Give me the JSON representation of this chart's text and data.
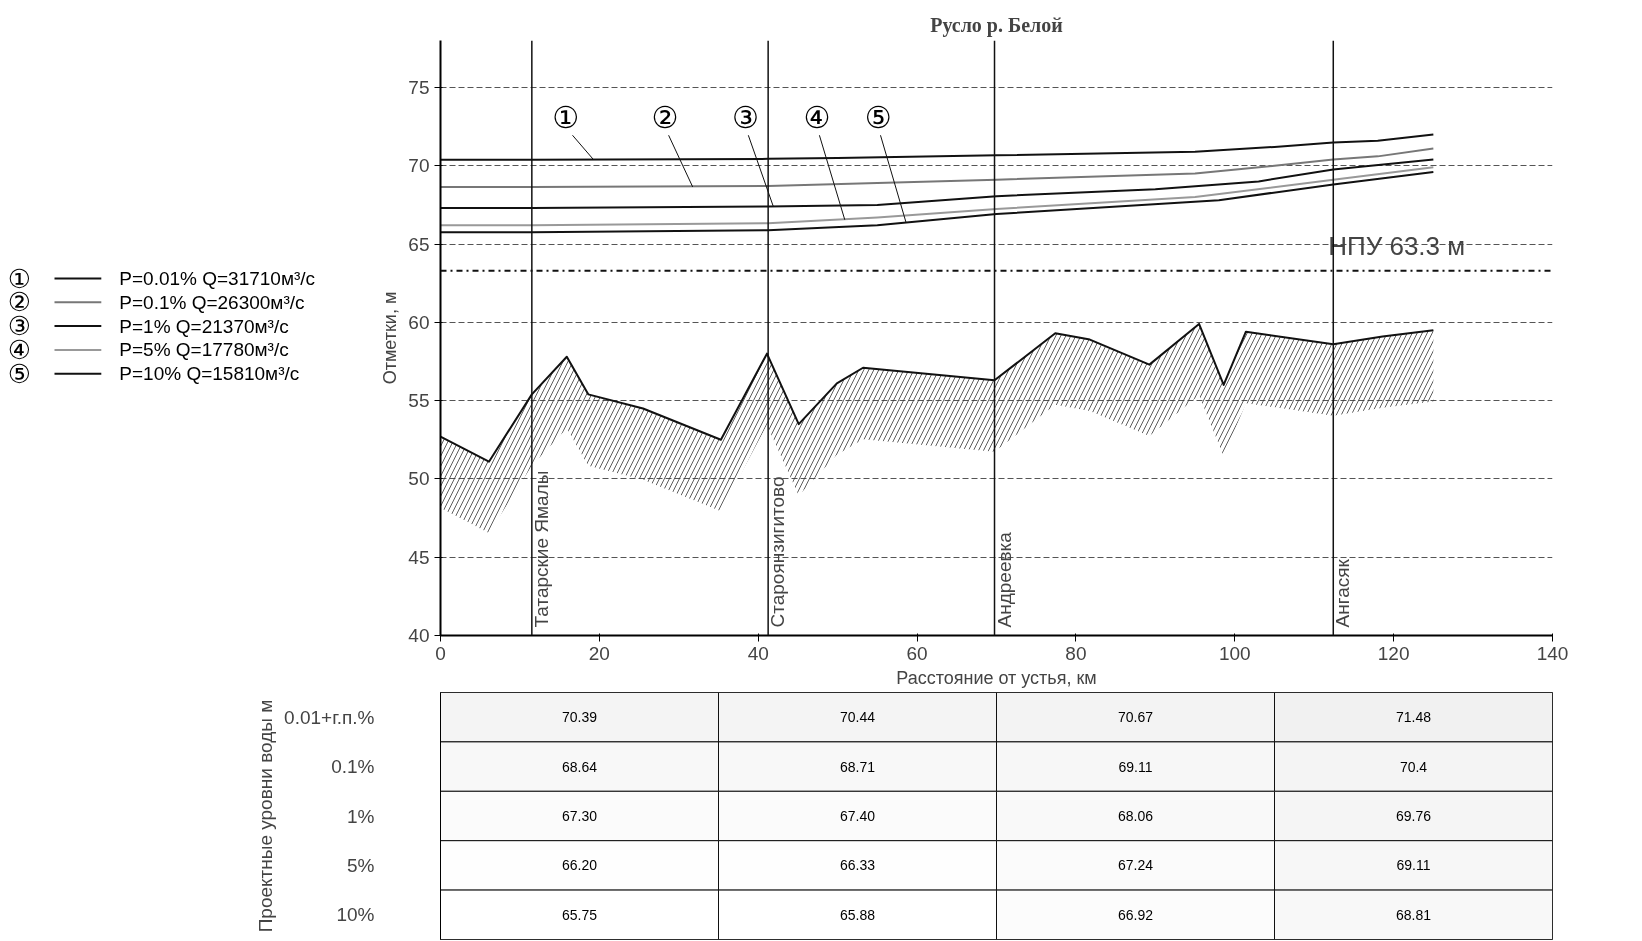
{
  "chart_data": [
    {
      "type": "line",
      "title": "Русло р. Белой",
      "xlabel": "Расстояние от устья, км",
      "ylabel": "Отметки, м",
      "xlim": [
        0,
        140
      ],
      "xticks": [
        0,
        20,
        40,
        60,
        80,
        100,
        120,
        140
      ],
      "ylim": [
        40,
        78
      ],
      "yticks": [
        40,
        45,
        50,
        55,
        60,
        65,
        70,
        75
      ],
      "grid": "y",
      "legend": "left",
      "line_style": "solid",
      "marker": "none",
      "series": [
        {
          "name": "P=0.01%   Q=31710м³/с",
          "color": "#111111",
          "x": [
            0,
            11.5,
            41.25,
            50,
            70,
            95,
            105,
            112.4,
            118,
            125
          ],
          "values": [
            70.39,
            70.39,
            70.44,
            70.5,
            70.67,
            70.9,
            71.2,
            71.48,
            71.6,
            72.0
          ]
        },
        {
          "name": "P=0.1%   Q=26300м³/с",
          "color": "#777777",
          "x": [
            0,
            11.5,
            41.25,
            55,
            70,
            95,
            105,
            112.4,
            118,
            125
          ],
          "values": [
            68.64,
            68.64,
            68.71,
            68.9,
            69.11,
            69.5,
            70.0,
            70.4,
            70.6,
            71.1
          ]
        },
        {
          "name": "P=1%   Q=21370м³/с",
          "color": "#111111",
          "x": [
            0,
            11.5,
            41.25,
            55,
            70,
            90,
            103,
            112.4,
            125
          ],
          "values": [
            67.3,
            67.3,
            67.4,
            67.5,
            68.06,
            68.5,
            69.0,
            69.76,
            70.4
          ]
        },
        {
          "name": "P=5%   Q=17780м³/с",
          "color": "#999999",
          "x": [
            0,
            11.5,
            41.25,
            55,
            70,
            95,
            112.4,
            125
          ],
          "values": [
            66.2,
            66.2,
            66.33,
            66.7,
            67.24,
            68.0,
            69.11,
            69.9
          ]
        },
        {
          "name": "P=10%   Q=15810м³/с",
          "color": "#111111",
          "x": [
            0,
            11.5,
            41.25,
            55,
            70,
            98,
            112.4,
            125
          ],
          "values": [
            65.75,
            65.75,
            65.88,
            66.2,
            66.92,
            67.8,
            68.81,
            69.6
          ]
        },
        {
          "type": "area",
          "color": "#111111",
          "x": [
            0,
            6.1,
            11.5,
            15.9,
            18.6,
            25.5,
            35.3,
            41.1,
            45.1,
            49.9,
            53.2,
            69.75,
            77.4,
            81.75,
            89.25,
            95.5,
            98.6,
            101.4,
            112.4,
            118.6,
            125
          ],
          "values": [
            52.7,
            51.1,
            55.4,
            57.8,
            55.4,
            54.5,
            52.5,
            58.0,
            53.5,
            56.1,
            57.1,
            56.3,
            59.3,
            58.9,
            57.3,
            59.9,
            56.0,
            59.4,
            58.6,
            59.1,
            59.5
          ]
        }
      ],
      "ref_lines": [
        {
          "axis": "y",
          "value": 63.3,
          "label": "НПУ 63.3 м",
          "line_style": "dashdot",
          "color": "#111111"
        },
        {
          "axis": "x",
          "value": 11.5,
          "label": "Татарские Ямалы",
          "color": "#111111"
        },
        {
          "axis": "x",
          "value": 41.25,
          "label": "Староянзигитово",
          "color": "#111111"
        },
        {
          "axis": "x",
          "value": 69.75,
          "label": "Андреевка",
          "color": "#111111"
        },
        {
          "axis": "x",
          "value": 112.4,
          "label": "Ангасяк",
          "color": "#111111"
        }
      ],
      "annotations": [
        {
          "text": "①",
          "x": 19.25,
          "y": 70.4
        },
        {
          "text": "②",
          "x": 31.75,
          "y": 68.65
        },
        {
          "text": "③",
          "x": 41.9,
          "y": 67.4
        },
        {
          "text": "④",
          "x": 50.9,
          "y": 66.55
        },
        {
          "text": "⑤",
          "x": 58.6,
          "y": 66.4
        }
      ]
    },
    {
      "type": "heatmap",
      "ylabel": "Проектные уровни воды м",
      "tick_labels": "y",
      "categories": [
        null,
        null,
        null,
        null
      ],
      "y_categories": [
        "0.01+г.п.%",
        "0.1%",
        "1%",
        "5%",
        "10%"
      ],
      "cells": [
        [
          70.39,
          70.44,
          70.67,
          71.48
        ],
        [
          68.64,
          68.71,
          69.11,
          70.4
        ],
        [
          67.3,
          67.4,
          68.06,
          69.76
        ],
        [
          66.2,
          66.33,
          67.24,
          69.11
        ],
        [
          65.75,
          65.88,
          66.92,
          68.81
        ]
      ],
      "cell_labels": [
        [
          "70.39",
          "70.44",
          "70.67",
          "71.48"
        ],
        [
          "68.64",
          "68.71",
          "69.11",
          "70.4"
        ],
        [
          "67.30",
          "67.40",
          "68.06",
          "69.76"
        ],
        [
          "66.20",
          "66.33",
          "67.24",
          "69.11"
        ],
        [
          "65.75",
          "65.88",
          "66.92",
          "68.81"
        ]
      ]
    }
  ]
}
